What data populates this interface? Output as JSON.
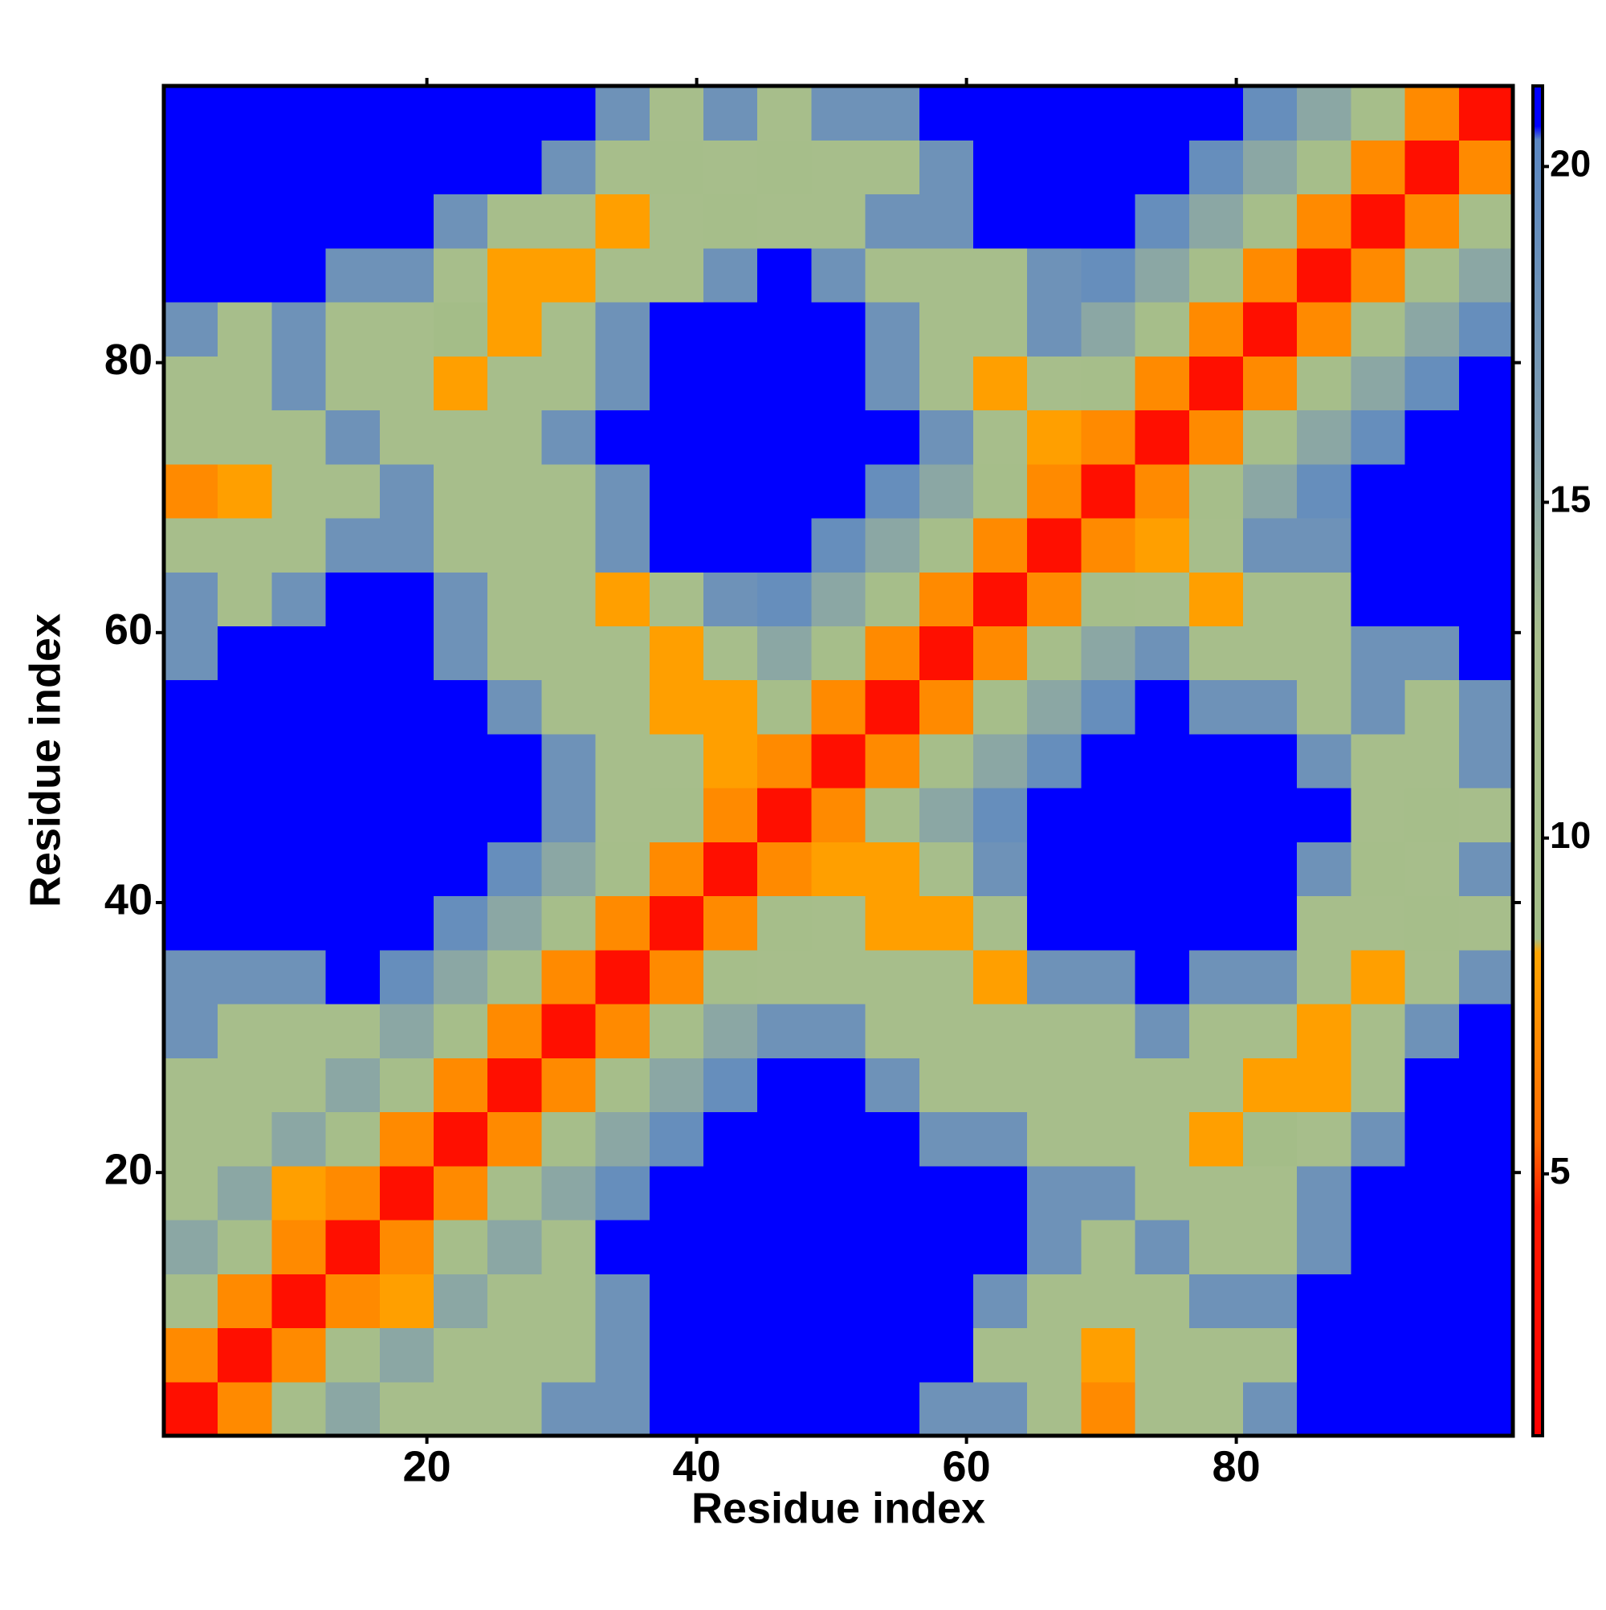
{
  "chart_data": {
    "type": "heatmap",
    "x_label": "Residue index",
    "y_label": "Residue index",
    "x": [
      2.5,
      6.5,
      10.5,
      14.5,
      18.5,
      22.5,
      26.5,
      30.5,
      34.5,
      38.5,
      42.5,
      46.5,
      50.5,
      54.5,
      58.5,
      62.5,
      66.5,
      70.5,
      74.5,
      78.5,
      82.5,
      86.5,
      90.5,
      94.5,
      98.5
    ],
    "y": [
      2.5,
      6.5,
      10.5,
      14.5,
      18.5,
      22.5,
      26.5,
      30.5,
      34.5,
      38.5,
      42.5,
      46.5,
      50.5,
      54.5,
      58.5,
      62.5,
      66.5,
      70.5,
      74.5,
      78.5,
      82.5,
      86.5,
      90.5,
      94.5,
      98.5
    ],
    "z": [
      [
        3,
        7,
        11,
        15,
        12,
        12,
        12,
        18,
        18,
        21,
        21,
        21,
        21,
        21,
        18,
        18,
        12,
        7,
        12,
        12,
        18,
        21,
        21,
        21,
        21
      ],
      [
        7,
        3,
        7,
        11,
        15,
        12,
        12,
        12,
        18,
        21,
        21,
        21,
        21,
        21,
        21,
        12,
        12,
        8,
        12,
        12,
        12,
        21,
        21,
        21,
        21
      ],
      [
        11,
        7,
        3,
        7,
        8,
        15,
        12,
        12,
        18,
        21,
        21,
        21,
        21,
        21,
        21,
        18,
        12,
        12,
        12,
        18,
        18,
        21,
        21,
        21,
        21
      ],
      [
        15,
        11,
        7,
        3,
        7,
        11,
        15,
        12,
        21,
        21,
        21,
        21,
        21,
        21,
        21,
        21,
        18,
        12,
        18,
        12,
        12,
        18,
        21,
        21,
        21
      ],
      [
        12,
        15,
        8,
        7,
        3,
        7,
        11,
        15,
        19,
        21,
        21,
        21,
        21,
        21,
        21,
        21,
        18,
        18,
        12,
        12,
        12,
        18,
        21,
        21,
        21
      ],
      [
        12,
        12,
        15,
        11,
        7,
        3,
        7,
        11,
        15,
        19,
        21,
        21,
        21,
        21,
        18,
        18,
        12,
        12,
        12,
        8,
        9,
        12,
        18,
        21,
        21
      ],
      [
        12,
        12,
        12,
        15,
        11,
        7,
        3,
        7,
        11,
        15,
        19,
        21,
        21,
        18,
        12,
        12,
        12,
        12,
        12,
        12,
        8,
        8,
        12,
        21,
        21
      ],
      [
        18,
        12,
        12,
        12,
        15,
        11,
        7,
        3,
        7,
        11,
        15,
        18,
        18,
        12,
        12,
        12,
        12,
        12,
        18,
        12,
        12,
        8,
        12,
        18,
        21
      ],
      [
        18,
        18,
        18,
        21,
        19,
        15,
        11,
        7,
        3,
        7,
        11,
        12,
        12,
        12,
        12,
        8,
        18,
        18,
        21,
        18,
        18,
        12,
        8,
        12,
        18
      ],
      [
        21,
        21,
        21,
        21,
        21,
        19,
        15,
        11,
        7,
        3,
        7,
        11,
        12,
        8,
        8,
        12,
        21,
        21,
        21,
        21,
        21,
        12,
        12,
        11,
        12
      ],
      [
        21,
        21,
        21,
        21,
        21,
        21,
        19,
        15,
        11,
        7,
        3,
        7,
        8,
        8,
        12,
        18,
        21,
        21,
        21,
        21,
        21,
        18,
        11,
        12,
        18
      ],
      [
        21,
        21,
        21,
        21,
        21,
        21,
        21,
        18,
        12,
        11,
        7,
        3,
        7,
        11,
        15,
        19,
        21,
        21,
        21,
        21,
        21,
        21,
        12,
        11,
        12
      ],
      [
        21,
        21,
        21,
        21,
        21,
        21,
        21,
        18,
        12,
        12,
        8,
        7,
        3,
        7,
        11,
        15,
        19,
        21,
        21,
        21,
        21,
        18,
        12,
        12,
        18
      ],
      [
        21,
        21,
        21,
        21,
        21,
        21,
        18,
        12,
        12,
        8,
        8,
        11,
        7,
        3,
        7,
        11,
        15,
        19,
        21,
        18,
        18,
        12,
        18,
        12,
        18
      ],
      [
        18,
        21,
        21,
        21,
        21,
        18,
        12,
        12,
        12,
        8,
        12,
        15,
        11,
        7,
        3,
        7,
        11,
        15,
        18,
        12,
        12,
        12,
        18,
        18,
        21
      ],
      [
        18,
        12,
        18,
        21,
        21,
        18,
        12,
        12,
        8,
        12,
        18,
        19,
        15,
        11,
        7,
        3,
        7,
        11,
        12,
        8,
        12,
        12,
        21,
        21,
        21
      ],
      [
        12,
        12,
        12,
        18,
        18,
        12,
        12,
        12,
        18,
        21,
        21,
        21,
        19,
        15,
        11,
        7,
        3,
        7,
        8,
        12,
        18,
        18,
        21,
        21,
        21
      ],
      [
        7,
        8,
        12,
        12,
        18,
        12,
        12,
        12,
        18,
        21,
        21,
        21,
        21,
        19,
        15,
        11,
        7,
        3,
        7,
        11,
        15,
        19,
        21,
        21,
        21
      ],
      [
        12,
        12,
        12,
        18,
        12,
        12,
        12,
        18,
        21,
        21,
        21,
        21,
        21,
        21,
        18,
        12,
        8,
        7,
        3,
        7,
        11,
        15,
        19,
        21,
        21
      ],
      [
        12,
        12,
        18,
        12,
        12,
        8,
        12,
        12,
        18,
        21,
        21,
        21,
        21,
        18,
        12,
        8,
        12,
        11,
        7,
        3,
        7,
        11,
        15,
        19,
        21
      ],
      [
        18,
        12,
        18,
        12,
        12,
        9,
        8,
        12,
        18,
        21,
        21,
        21,
        21,
        18,
        12,
        12,
        18,
        15,
        11,
        7,
        3,
        7,
        11,
        15,
        19
      ],
      [
        21,
        21,
        21,
        18,
        18,
        12,
        8,
        8,
        12,
        12,
        18,
        21,
        18,
        12,
        12,
        12,
        18,
        19,
        15,
        11,
        7,
        3,
        7,
        11,
        15
      ],
      [
        21,
        21,
        21,
        21,
        21,
        18,
        12,
        12,
        8,
        12,
        11,
        12,
        12,
        18,
        18,
        21,
        21,
        21,
        19,
        15,
        11,
        7,
        3,
        7,
        11
      ],
      [
        21,
        21,
        21,
        21,
        21,
        21,
        21,
        18,
        12,
        11,
        12,
        11,
        12,
        12,
        18,
        21,
        21,
        21,
        21,
        19,
        15,
        11,
        7,
        3,
        7
      ],
      [
        21,
        21,
        21,
        21,
        21,
        21,
        21,
        21,
        18,
        12,
        18,
        12,
        18,
        18,
        21,
        21,
        21,
        21,
        21,
        21,
        19,
        15,
        11,
        7,
        3
      ]
    ],
    "xlim": [
      0.5,
      100.5
    ],
    "ylim": [
      0.5,
      100.5
    ],
    "xticks": [
      20,
      40,
      60,
      80
    ],
    "yticks": [
      20,
      40,
      60,
      80
    ],
    "colorscale": [
      [
        1.1,
        "#ff0000"
      ],
      [
        4.5,
        "#ff1a00"
      ],
      [
        5.5,
        "#ff6a00"
      ],
      [
        8.3,
        "#ffa500"
      ],
      [
        8.5,
        "#a3bd88"
      ],
      [
        13,
        "#a8be8c"
      ],
      [
        16,
        "#7d9cb0"
      ],
      [
        20.4,
        "#5b87c2"
      ],
      [
        20.6,
        "#0000ff"
      ],
      [
        21.2,
        "#0000ff"
      ]
    ],
    "colorbar": {
      "lim": [
        1.1,
        21.2
      ],
      "ticks": [
        5,
        10,
        15,
        20
      ]
    }
  }
}
